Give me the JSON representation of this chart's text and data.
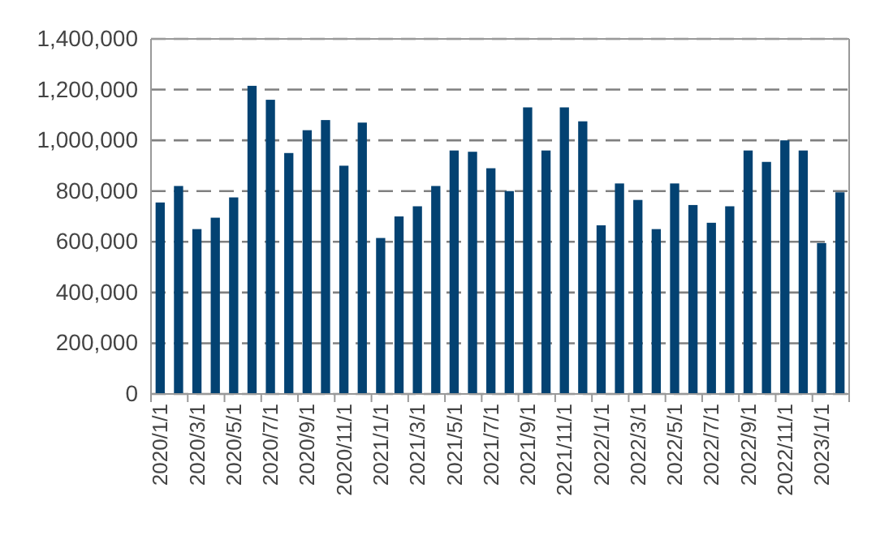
{
  "chart_data": {
    "type": "bar",
    "categories": [
      "2020/1/1",
      null,
      "2020/3/1",
      null,
      "2020/5/1",
      null,
      "2020/7/1",
      null,
      "2020/9/1",
      null,
      "2020/11/1",
      null,
      "2021/1/1",
      null,
      "2021/3/1",
      null,
      "2021/5/1",
      null,
      "2021/7/1",
      null,
      "2021/9/1",
      null,
      "2021/11/1",
      null,
      "2022/1/1",
      null,
      "2022/3/1",
      null,
      "2022/5/1",
      null,
      "2022/7/1",
      null,
      "2022/9/1",
      null,
      "2022/11/1",
      null,
      "2023/1/1",
      null
    ],
    "values": [
      755000,
      820000,
      650000,
      695000,
      775000,
      1215000,
      1160000,
      950000,
      1040000,
      1080000,
      900000,
      1070000,
      615000,
      700000,
      740000,
      820000,
      960000,
      955000,
      890000,
      800000,
      1130000,
      960000,
      1130000,
      1075000,
      665000,
      830000,
      765000,
      650000,
      830000,
      745000,
      675000,
      740000,
      960000,
      915000,
      1000000,
      960000,
      595000,
      795000
    ],
    "color": "#034272",
    "ylim": [
      0,
      1400000
    ],
    "yticks": [
      {
        "value": 0,
        "label": "0"
      },
      {
        "value": 200000,
        "label": "200,000"
      },
      {
        "value": 400000,
        "label": "400,000"
      },
      {
        "value": 600000,
        "label": "600,000"
      },
      {
        "value": 800000,
        "label": "800,000"
      },
      {
        "value": 1000000,
        "label": "1,000,000"
      },
      {
        "value": 1200000,
        "label": "1,200,000"
      },
      {
        "value": 1400000,
        "label": "1,400,000"
      }
    ],
    "grid": "y"
  }
}
